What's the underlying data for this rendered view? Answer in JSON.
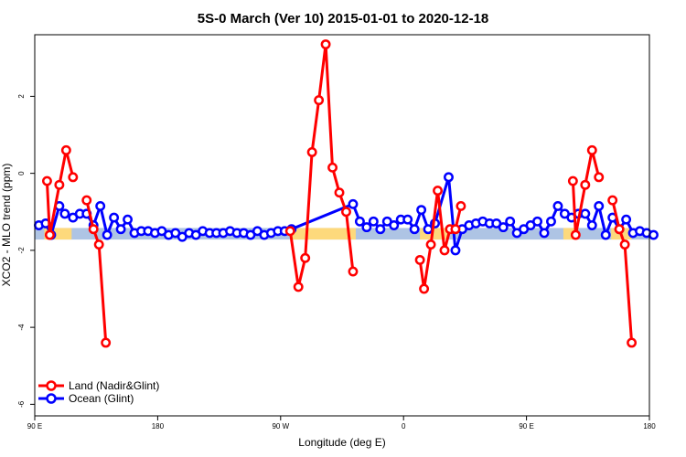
{
  "chart_data": {
    "type": "line",
    "title": "5S-0 March (Ver 10)   2015-01-01 to 2020-12-18",
    "xlabel": "Longitude (deg E)",
    "ylabel": "XCO2 - MLO trend (ppm)",
    "x_ticks": [
      {
        "value": 90,
        "label": "90 E"
      },
      {
        "value": 180,
        "label": "180"
      },
      {
        "value": 270,
        "label": "90 W"
      },
      {
        "value": 360,
        "label": "0"
      },
      {
        "value": 450,
        "label": "90 E"
      },
      {
        "value": 540,
        "label": "180"
      }
    ],
    "xlim": [
      90,
      540
    ],
    "y_ticks": [
      -6,
      -4,
      -2,
      0,
      2
    ],
    "ylim": [
      -6.3,
      3.6
    ],
    "grid": false,
    "legend_position": "bottom-left",
    "band": {
      "y_low": -1.72,
      "y_high": -1.42,
      "base_color": "#aec4e4",
      "highlight_color": "#fdd97c",
      "highlight_ranges": [
        [
          97,
          117
        ],
        [
          277,
          325
        ],
        [
          372,
          392
        ],
        [
          477,
          488
        ],
        [
          512,
          527
        ]
      ]
    },
    "series": [
      {
        "name": "Land (Nadir&Glint)",
        "color": "#ff0000",
        "segments": [
          [
            [
              99,
              -0.2
            ],
            [
              101,
              -1.6
            ],
            [
              108,
              -0.3
            ],
            [
              113,
              0.6
            ],
            [
              118,
              -0.1
            ]
          ],
          [
            [
              128,
              -0.7
            ],
            [
              133,
              -1.45
            ],
            [
              137,
              -1.85
            ],
            [
              142,
              -4.4
            ]
          ],
          [
            [
              277,
              -1.5
            ],
            [
              283,
              -2.95
            ],
            [
              288,
              -2.2
            ],
            [
              293,
              0.55
            ],
            [
              298,
              1.9
            ],
            [
              303,
              3.35
            ],
            [
              308,
              0.15
            ],
            [
              313,
              -0.5
            ],
            [
              318,
              -1.0
            ],
            [
              323,
              -2.55
            ]
          ],
          [
            [
              372,
              -2.25
            ],
            [
              375,
              -3.0
            ],
            [
              380,
              -1.85
            ],
            [
              385,
              -0.45
            ],
            [
              390,
              -2.0
            ],
            [
              394,
              -1.45
            ],
            [
              398,
              -1.45
            ],
            [
              402,
              -0.85
            ]
          ],
          [
            [
              484,
              -0.2
            ],
            [
              486,
              -1.6
            ],
            [
              493,
              -0.3
            ],
            [
              498,
              0.6
            ],
            [
              503,
              -0.1
            ]
          ],
          [
            [
              513,
              -0.7
            ],
            [
              518,
              -1.45
            ],
            [
              522,
              -1.85
            ],
            [
              527,
              -4.4
            ]
          ]
        ]
      },
      {
        "name": "Ocean (Glint)",
        "color": "#0000ff",
        "points": [
          [
            93,
            -1.35
          ],
          [
            98,
            -1.3
          ],
          [
            102,
            -1.6
          ],
          [
            108,
            -0.85
          ],
          [
            112,
            -1.05
          ],
          [
            118,
            -1.15
          ],
          [
            123,
            -1.05
          ],
          [
            128,
            -1.05
          ],
          [
            133,
            -1.35
          ],
          [
            138,
            -0.85
          ],
          [
            143,
            -1.6
          ],
          [
            148,
            -1.15
          ],
          [
            153,
            -1.45
          ],
          [
            158,
            -1.2
          ],
          [
            163,
            -1.55
          ],
          [
            168,
            -1.5
          ],
          [
            173,
            -1.5
          ],
          [
            178,
            -1.55
          ],
          [
            183,
            -1.5
          ],
          [
            188,
            -1.6
          ],
          [
            193,
            -1.55
          ],
          [
            198,
            -1.65
          ],
          [
            203,
            -1.55
          ],
          [
            208,
            -1.6
          ],
          [
            213,
            -1.5
          ],
          [
            218,
            -1.55
          ],
          [
            223,
            -1.55
          ],
          [
            228,
            -1.55
          ],
          [
            233,
            -1.5
          ],
          [
            238,
            -1.55
          ],
          [
            243,
            -1.55
          ],
          [
            248,
            -1.6
          ],
          [
            253,
            -1.5
          ],
          [
            258,
            -1.6
          ],
          [
            263,
            -1.55
          ],
          [
            268,
            -1.5
          ],
          [
            273,
            -1.5
          ],
          [
            278,
            -1.45
          ],
          [
            323,
            -0.8
          ],
          [
            328,
            -1.25
          ],
          [
            333,
            -1.4
          ],
          [
            338,
            -1.25
          ],
          [
            343,
            -1.45
          ],
          [
            348,
            -1.25
          ],
          [
            353,
            -1.35
          ],
          [
            358,
            -1.2
          ],
          [
            363,
            -1.2
          ],
          [
            368,
            -1.45
          ],
          [
            373,
            -0.95
          ],
          [
            378,
            -1.45
          ],
          [
            383,
            -1.3
          ],
          [
            393,
            -0.1
          ],
          [
            398,
            -2.0
          ],
          [
            403,
            -1.45
          ],
          [
            408,
            -1.35
          ],
          [
            413,
            -1.3
          ],
          [
            418,
            -1.25
          ],
          [
            423,
            -1.3
          ],
          [
            428,
            -1.3
          ],
          [
            433,
            -1.4
          ],
          [
            438,
            -1.25
          ],
          [
            443,
            -1.55
          ],
          [
            448,
            -1.45
          ],
          [
            453,
            -1.35
          ],
          [
            458,
            -1.25
          ],
          [
            463,
            -1.55
          ],
          [
            468,
            -1.25
          ],
          [
            473,
            -0.85
          ],
          [
            478,
            -1.05
          ],
          [
            483,
            -1.15
          ],
          [
            488,
            -1.05
          ],
          [
            493,
            -1.05
          ],
          [
            498,
            -1.35
          ],
          [
            503,
            -0.85
          ],
          [
            508,
            -1.6
          ],
          [
            513,
            -1.15
          ],
          [
            518,
            -1.45
          ],
          [
            523,
            -1.2
          ],
          [
            528,
            -1.55
          ],
          [
            533,
            -1.5
          ],
          [
            538,
            -1.55
          ],
          [
            543,
            -1.6
          ]
        ]
      }
    ]
  }
}
